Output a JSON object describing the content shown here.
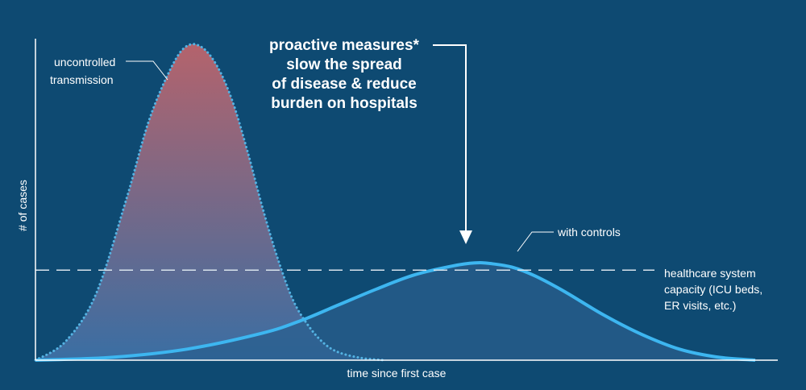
{
  "chart_data": {
    "type": "area",
    "xlabel": "time since first case",
    "ylabel": "# of cases",
    "xlim": [
      0,
      100
    ],
    "ylim": [
      0,
      100
    ],
    "grid": false,
    "series": [
      {
        "name": "uncontrolled transmission",
        "style": "dotted",
        "fill_top": "#b4636c",
        "fill_bottom": "#3a6ea3",
        "line_color": "#54b3e3",
        "x": [
          0,
          4,
          8,
          12,
          15,
          18,
          20,
          22,
          24,
          26,
          28,
          30,
          32,
          34,
          36,
          38,
          40,
          43,
          46
        ],
        "y": [
          0,
          6,
          21,
          51,
          76,
          93,
          99.5,
          99,
          93,
          82,
          66,
          48,
          32,
          19,
          11,
          5.5,
          2.5,
          0.7,
          0
        ]
      },
      {
        "name": "with controls",
        "style": "solid",
        "fill_color": "#295f8d",
        "line_color": "#3db6f0",
        "x": [
          0,
          10,
          20,
          30,
          35,
          40,
          45,
          50,
          55,
          58,
          60,
          63,
          66,
          70,
          75,
          80,
          85,
          90,
          95
        ],
        "y": [
          0,
          0.9,
          3.5,
          8.6,
          12.5,
          17.5,
          22.5,
          27,
          29.8,
          30.8,
          30.6,
          29.4,
          26.6,
          21.5,
          14.3,
          8.2,
          3.5,
          1,
          0
        ]
      }
    ],
    "reference_line": {
      "y": 28.5,
      "style": "dashed",
      "label": [
        "healthcare system",
        "capacity (ICU beds,",
        "ER visits, etc.)"
      ]
    },
    "annotations": {
      "headline": [
        "proactive measures*",
        "slow the spread",
        "of disease & reduce",
        "burden on hospitals"
      ],
      "uncontrolled": [
        "uncontrolled",
        "transmission"
      ],
      "with_controls": "with controls"
    }
  }
}
